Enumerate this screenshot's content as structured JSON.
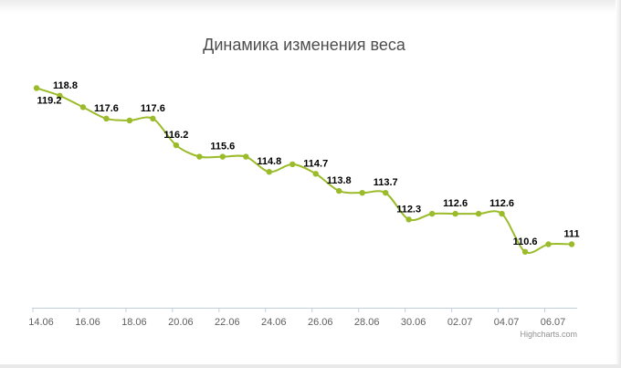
{
  "chart_data": {
    "type": "line",
    "title": "Динамика изменения веса",
    "xlabel": "",
    "ylabel": "",
    "credits": "Highcharts.com",
    "series_color": "#9bbb2b",
    "grid": false,
    "x_tick_labels": [
      "14.06",
      "16.06",
      "18.06",
      "20.06",
      "22.06",
      "24.06",
      "26.06",
      "28.06",
      "30.06",
      "02.07",
      "04.07",
      "06.07"
    ],
    "x": [
      "14.06",
      "15.06",
      "16.06",
      "17.06",
      "18.06",
      "19.06",
      "20.06",
      "21.06",
      "22.06",
      "23.06",
      "24.06",
      "25.06",
      "26.06",
      "27.06",
      "28.06",
      "29.06",
      "30.06",
      "01.07",
      "02.07",
      "03.07",
      "04.07",
      "05.07",
      "06.07",
      "07.07"
    ],
    "values": [
      119.2,
      118.8,
      118.2,
      117.6,
      117.5,
      117.6,
      116.2,
      115.6,
      115.6,
      115.6,
      114.8,
      115.2,
      114.7,
      113.8,
      113.7,
      113.7,
      112.3,
      112.6,
      112.6,
      112.6,
      112.6,
      110.6,
      111,
      111
    ],
    "data_labels": [
      {
        "index": 0,
        "text": "119.2"
      },
      {
        "index": 1,
        "text": "118.8"
      },
      {
        "index": 3,
        "text": "117.6"
      },
      {
        "index": 5,
        "text": "117.6"
      },
      {
        "index": 6,
        "text": "116.2"
      },
      {
        "index": 8,
        "text": "115.6"
      },
      {
        "index": 10,
        "text": "114.8"
      },
      {
        "index": 12,
        "text": "114.7"
      },
      {
        "index": 13,
        "text": "113.8"
      },
      {
        "index": 15,
        "text": "113.7"
      },
      {
        "index": 16,
        "text": "112.3"
      },
      {
        "index": 18,
        "text": "112.6"
      },
      {
        "index": 20,
        "text": "112.6"
      },
      {
        "index": 21,
        "text": "110.6"
      },
      {
        "index": 23,
        "text": "111"
      }
    ]
  }
}
